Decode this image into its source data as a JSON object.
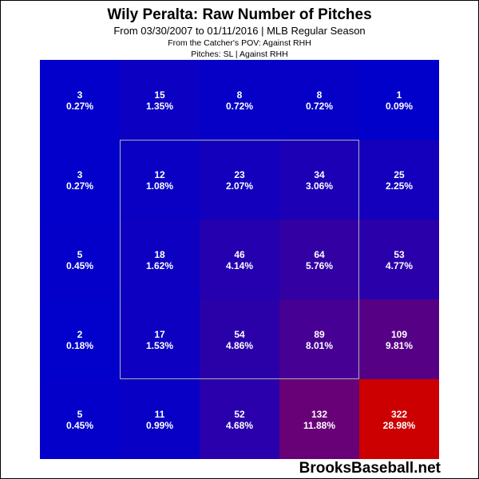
{
  "chart_data": {
    "type": "heatmap",
    "title": "Wily Peralta: Raw Number of Pitches",
    "subtitle": "From 03/30/2007 to 01/11/2016 | MLB Regular Season",
    "pov_note": "From the Catcher's POV:   Against RHH",
    "filter_note": "Pitches:  SL  |  Against RHH",
    "rows": [
      [
        {
          "count": "3",
          "pct": "0.27%"
        },
        {
          "count": "15",
          "pct": "1.35%"
        },
        {
          "count": "8",
          "pct": "0.72%"
        },
        {
          "count": "8",
          "pct": "0.72%"
        },
        {
          "count": "1",
          "pct": "0.09%"
        }
      ],
      [
        {
          "count": "3",
          "pct": "0.27%"
        },
        {
          "count": "12",
          "pct": "1.08%"
        },
        {
          "count": "23",
          "pct": "2.07%"
        },
        {
          "count": "34",
          "pct": "3.06%"
        },
        {
          "count": "25",
          "pct": "2.25%"
        }
      ],
      [
        {
          "count": "5",
          "pct": "0.45%"
        },
        {
          "count": "18",
          "pct": "1.62%"
        },
        {
          "count": "46",
          "pct": "4.14%"
        },
        {
          "count": "64",
          "pct": "5.76%"
        },
        {
          "count": "53",
          "pct": "4.77%"
        }
      ],
      [
        {
          "count": "2",
          "pct": "0.18%"
        },
        {
          "count": "17",
          "pct": "1.53%"
        },
        {
          "count": "54",
          "pct": "4.86%"
        },
        {
          "count": "89",
          "pct": "8.01%"
        },
        {
          "count": "109",
          "pct": "9.81%"
        }
      ],
      [
        {
          "count": "5",
          "pct": "0.45%"
        },
        {
          "count": "11",
          "pct": "0.99%"
        },
        {
          "count": "52",
          "pct": "4.68%"
        },
        {
          "count": "132",
          "pct": "11.88%"
        },
        {
          "count": "322",
          "pct": "28.98%"
        }
      ]
    ],
    "max_cell_color": "#cc0000",
    "watermark": "BrooksBaseball.net"
  }
}
